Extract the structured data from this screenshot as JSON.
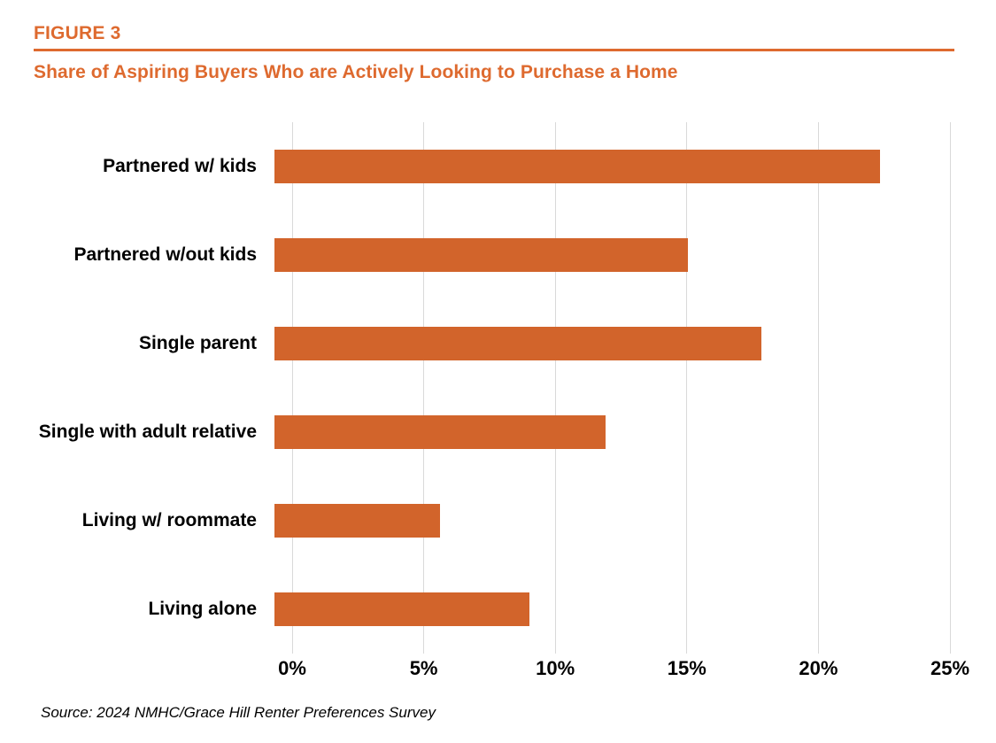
{
  "header": {
    "figure_label": "FIGURE 3",
    "title": "Share of Aspiring Buyers Who are Actively Looking to Purchase a Home"
  },
  "chart_data": {
    "type": "bar",
    "orientation": "horizontal",
    "title": "Share of Aspiring Buyers Who are Actively Looking to Purchase a Home",
    "categories": [
      "Partnered w/ kids",
      "Partnered w/out kids",
      "Single parent",
      "Single with adult relative",
      "Living w/ roommate",
      "Living alone"
    ],
    "values": [
      23.0,
      15.7,
      18.5,
      12.6,
      6.3,
      9.7
    ],
    "unit": "%",
    "xlabel": "",
    "ylabel": "",
    "xlim": [
      0,
      25
    ],
    "x_tick_values": [
      0,
      5,
      10,
      15,
      20,
      25
    ],
    "x_tick_labels": [
      "0%",
      "5%",
      "10%",
      "15%",
      "20%",
      "25%"
    ],
    "grid": "vertical-gridlines-on",
    "legend": "none"
  },
  "colors": {
    "accent": "#DE6A2F",
    "bar": "#D2642B",
    "gridline": "#D9D9D9",
    "text": "#000000"
  },
  "source": "Source: 2024 NMHC/Grace Hill Renter Preferences Survey"
}
